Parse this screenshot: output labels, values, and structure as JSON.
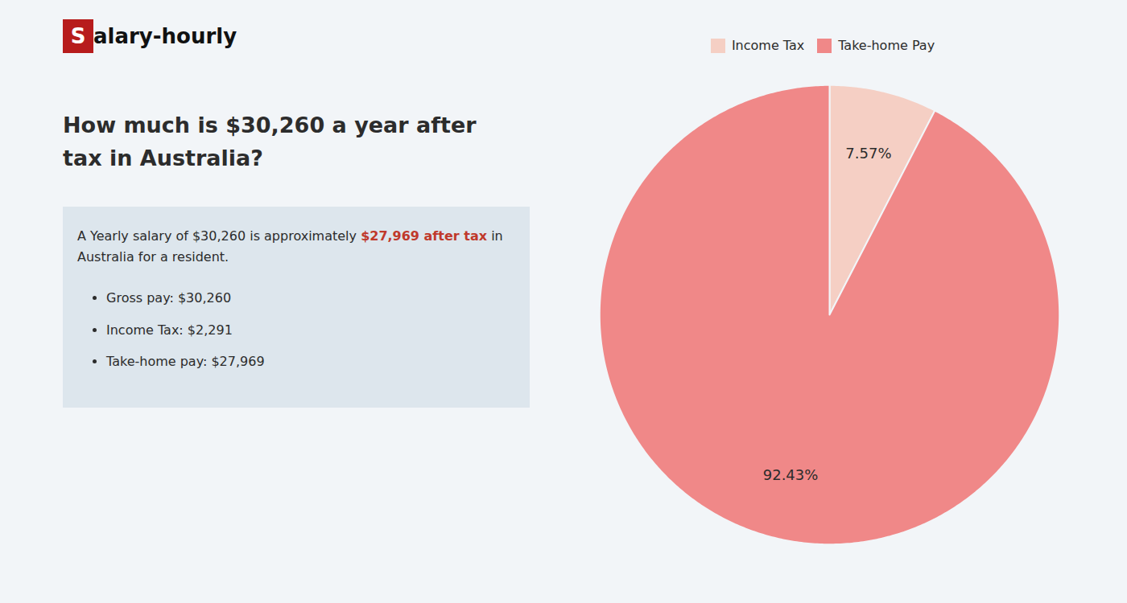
{
  "chart_data": {
    "type": "pie",
    "title": "How much is $30,260 a year after tax in Australia?",
    "categories": [
      "Income Tax",
      "Take-home Pay"
    ],
    "values": [
      7.57,
      92.43
    ],
    "value_labels": [
      "7.57%",
      "92.43%"
    ],
    "colors": [
      "#f5cfc4",
      "#f08888"
    ],
    "data_labels": true,
    "legend": "top",
    "annotations": {
      "logo": [
        "S",
        "alary-hourly"
      ],
      "summary": [
        "A Yearly salary of $30,260 is approximately ",
        "$27,969 after tax",
        " in",
        "Australia for a resident."
      ],
      "bullets": [
        "Gross pay: $30,260",
        "Income Tax: $2,291",
        "Take-home pay: $27,969"
      ]
    }
  }
}
